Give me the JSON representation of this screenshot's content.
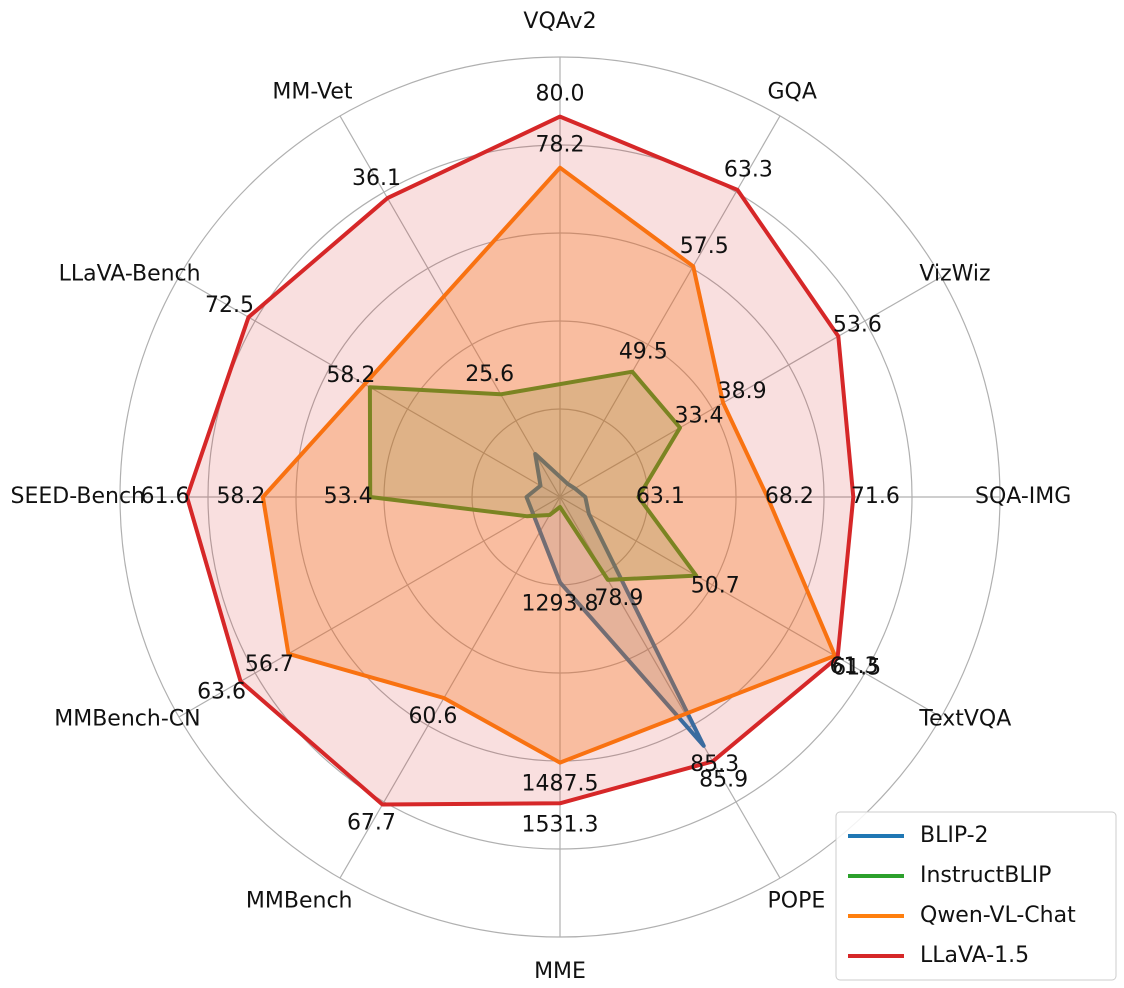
{
  "chart_data": {
    "type": "radar",
    "categories": [
      "VQAv2",
      "GQA",
      "VizWiz",
      "SQA-IMG",
      "TextVQA",
      "POPE",
      "MME",
      "MMBench",
      "MMBench-CN",
      "SEED-Bench",
      "LLaVA-Bench",
      "MM-Vet"
    ],
    "rlims": [
      [
        66.6,
        82.1
      ],
      [
        40.0,
        68.9
      ],
      [
        18.1,
        66.7
      ],
      [
        60.0,
        77.4
      ],
      [
        40.3,
        69.4
      ],
      [
        75.7,
        90.4
      ],
      [
        1202,
        1675
      ],
      [
        47.2,
        72.6
      ],
      [
        17.5,
        72.5
      ],
      [
        44.9,
        64.6
      ],
      [
        35.8,
        80.7
      ],
      [
        20.1,
        40.5
      ]
    ],
    "grid": true,
    "legend": "lower right",
    "series": [
      {
        "name": "BLIP-2",
        "color": "#1f77b4",
        "values": [
          null,
          41.0,
          20.0,
          61.0,
          42.5,
          85.3,
          1293.8,
          null,
          null,
          46.4,
          38.1,
          22.4
        ],
        "value_labels": [
          null,
          null,
          null,
          null,
          null,
          "85.3",
          "1293.8",
          null,
          null,
          null,
          null,
          null
        ]
      },
      {
        "name": "InstructBLIP",
        "color": "#2ca02c",
        "values": [
          null,
          49.5,
          33.4,
          63.1,
          50.7,
          78.9,
          1212.8,
          48.4,
          22.3,
          53.4,
          58.2,
          25.6
        ],
        "value_labels": [
          null,
          "49.5",
          "33.4",
          "63.1",
          "50.7",
          "78.9",
          null,
          null,
          null,
          "53.4",
          "58.2",
          "25.6"
        ]
      },
      {
        "name": "Qwen-VL-Chat",
        "color": "#ff7f0e",
        "values": [
          78.2,
          57.5,
          38.9,
          68.2,
          61.3,
          null,
          1487.5,
          60.6,
          56.7,
          58.2,
          null,
          null
        ],
        "value_labels": [
          "78.2",
          "57.5",
          "38.9",
          "68.2",
          "61.3",
          null,
          "1487.5",
          "60.6",
          "56.7",
          "58.2",
          null,
          null
        ]
      },
      {
        "name": "LLaVA-1.5",
        "color": "#d62728",
        "values": [
          80.0,
          63.3,
          53.6,
          71.6,
          61.5,
          85.9,
          1531.3,
          67.7,
          63.6,
          61.6,
          72.5,
          36.1
        ],
        "value_labels": [
          "80.0",
          "63.3",
          "53.6",
          "71.6",
          "61.5",
          "85.9",
          "1531.3",
          "67.7",
          "63.6",
          "61.6",
          "72.5",
          "36.1"
        ]
      }
    ]
  }
}
